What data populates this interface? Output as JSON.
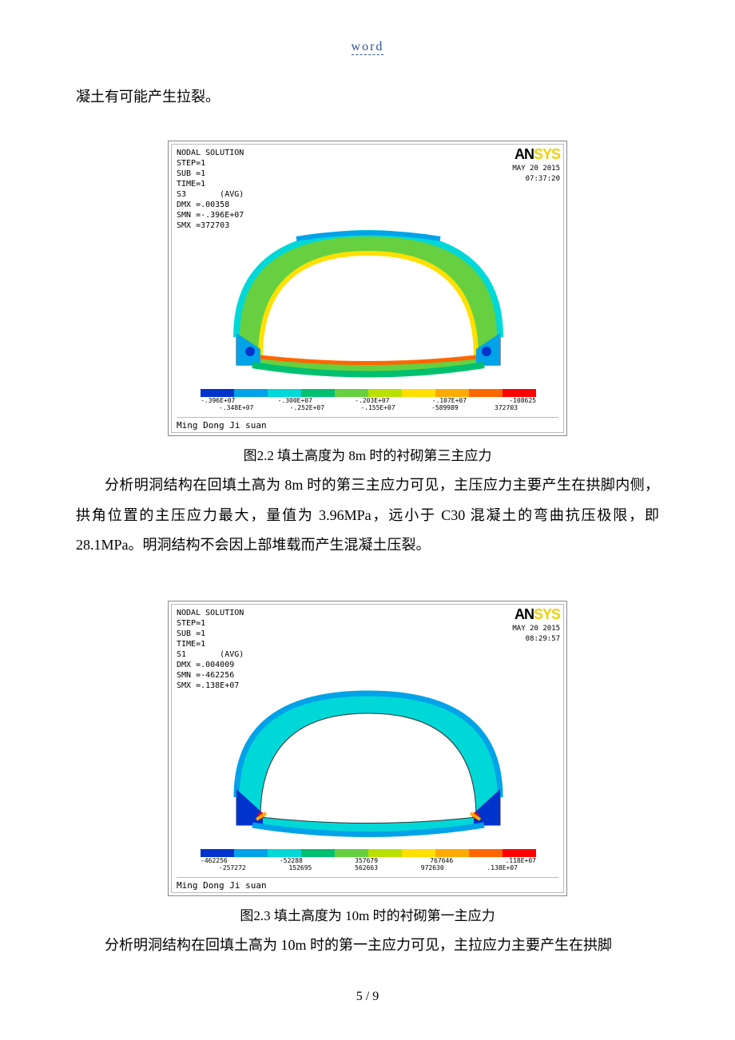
{
  "header": {
    "word": "word"
  },
  "intro_text": "凝土有可能产生拉裂。",
  "figure1": {
    "plot": {
      "header_lines": "NODAL SOLUTION\nSTEP=1\nSUB =1\nTIME=1\nS3       (AVG)\nDMX =.00358\nSMN =-.396E+07\nSMX =372703",
      "logo_an": "AN",
      "logo_sys": "SYS",
      "date": "MAY 20 2015",
      "time": "07:37:20",
      "footer": "Ming Dong Ji suan",
      "legend_colors": [
        "#0033cc",
        "#00a2e8",
        "#00d8d8",
        "#00c070",
        "#66d040",
        "#b8e000",
        "#ffe000",
        "#ffaa00",
        "#ff6600",
        "#ff0000"
      ],
      "legend_top": [
        "-.396E+07",
        "-.300E+07",
        "-.203E+07",
        "-.107E+07",
        "-108625"
      ],
      "legend_bot": [
        "-.348E+07",
        "-.252E+07",
        "-.155E+07",
        "-589989",
        "372703"
      ]
    },
    "caption": "图2.2   填土高度为 8m 时的衬砌第三主应力"
  },
  "para1": "分析明洞结构在回填土高为 8m 时的第三主应力可见，主压应力主要产生在拱脚内侧，拱角位置的主压应力最大，量值为 3.96MPa，远小于 C30 混凝土的弯曲抗压极限，即 28.1MPa。明洞结构不会因上部堆载而产生混凝土压裂。",
  "figure2": {
    "plot": {
      "header_lines": "NODAL SOLUTION\nSTEP=1\nSUB =1\nTIME=1\nS1       (AVG)\nDMX =.004009\nSMN =-462256\nSMX =.138E+07",
      "logo_an": "AN",
      "logo_sys": "SYS",
      "date": "MAY 20 2015",
      "time": "08:29:57",
      "footer": "Ming Dong Ji suan",
      "legend_colors": [
        "#0033cc",
        "#00a2e8",
        "#00d8d8",
        "#00c070",
        "#66d040",
        "#b8e000",
        "#ffe000",
        "#ffaa00",
        "#ff6600",
        "#ff0000"
      ],
      "legend_top": [
        "-462256",
        "-52288",
        "357679",
        "767646",
        ".118E+07"
      ],
      "legend_bot": [
        "-257272",
        "152695",
        "562663",
        "972630",
        ".138E+07"
      ]
    },
    "caption": "图2.3   填土高度为 10m 时的衬砌第一主应力"
  },
  "para2": "分析明洞结构在回填土高为 10m 时的第一主应力可见，主拉应力主要产生在拱脚",
  "page_num": "5 / 9"
}
